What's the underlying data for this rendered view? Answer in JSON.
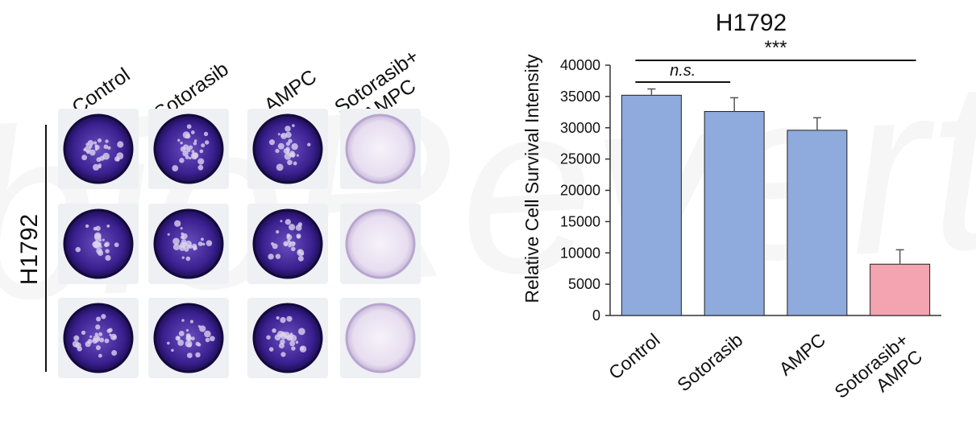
{
  "watermark": "bioRevert",
  "plate": {
    "cell_line": "H1792",
    "columns": [
      {
        "label_lines": [
          "Control"
        ],
        "stain_level": 1.0
      },
      {
        "label_lines": [
          "Sotorasib"
        ],
        "stain_level": 0.95
      },
      {
        "label_lines": [
          "AMPC"
        ],
        "stain_level": 0.9
      },
      {
        "label_lines": [
          "Sotorasib+",
          "AMPC"
        ],
        "stain_level": 0.12
      }
    ],
    "rows": 3,
    "colors": {
      "stain": "#3a1f8f",
      "stain_dark": "#1c0f52",
      "unstained": "#ece6f2"
    }
  },
  "chart_data": {
    "type": "bar",
    "title": "H1792",
    "ylabel": "Relative Cell Survival Intensity",
    "xlabel": "",
    "categories": [
      "Control",
      "Sotorasib",
      "AMPC",
      "Sotorasib+\nAMPC"
    ],
    "values": [
      35200,
      32600,
      29600,
      8200
    ],
    "errors": [
      1000,
      2200,
      2000,
      2300
    ],
    "bar_colors": [
      "#8faadc",
      "#8faadc",
      "#8faadc",
      "#f4a3b0"
    ],
    "ylim": [
      0,
      40000
    ],
    "yticks": [
      "0",
      "5000",
      "10000",
      "15000",
      "20000",
      "25000",
      "30000",
      "35000",
      "40000"
    ],
    "grid": false,
    "annotations": [
      {
        "label": "n.s.",
        "italic": true,
        "from": 0,
        "to": 1
      },
      {
        "label": "***",
        "italic": false,
        "from": 0,
        "to": 3
      }
    ]
  }
}
